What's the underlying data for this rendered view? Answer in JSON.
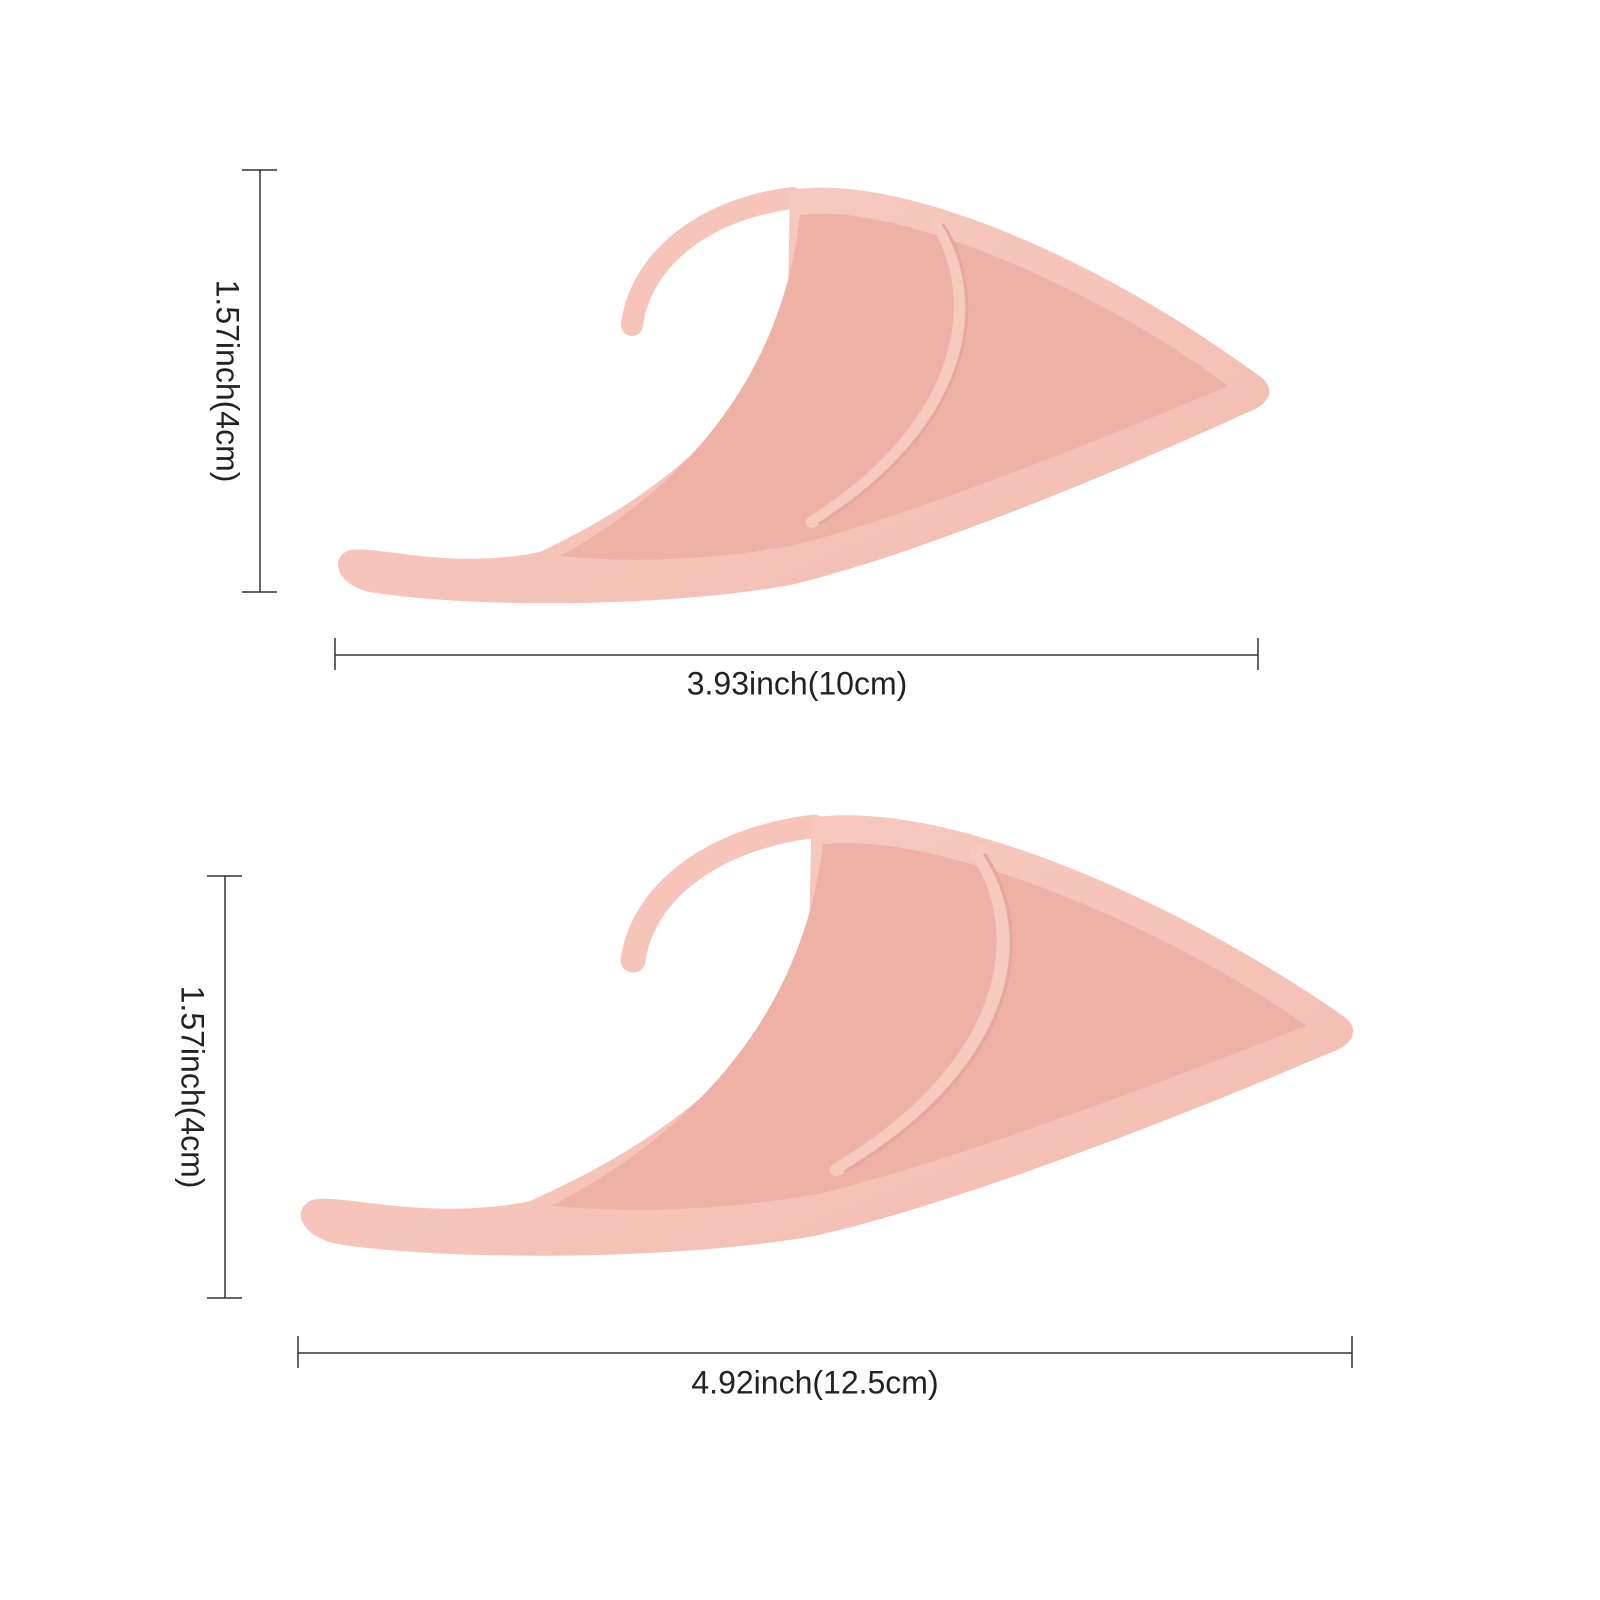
{
  "items": [
    {
      "height_label": "1.57inch(4cm)",
      "width_label": "3.93inch(10cm)"
    },
    {
      "height_label": "1.57inch(4cm)",
      "width_label": "4.92inch(12.5cm)"
    }
  ]
}
